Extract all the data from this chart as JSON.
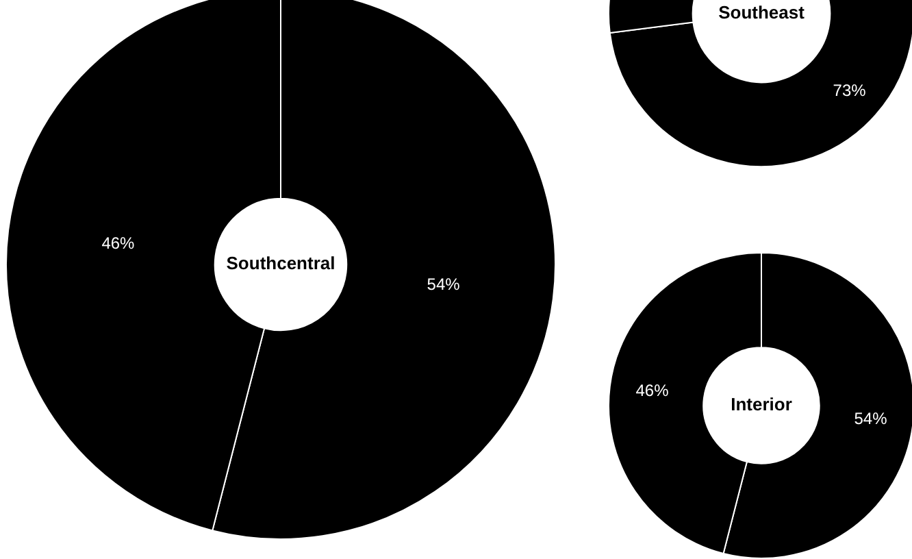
{
  "chart_data": [
    {
      "type": "donut",
      "title": "Southcentral",
      "categories": [
        null,
        null
      ],
      "values": [
        54,
        46
      ],
      "colors": [
        "#000000",
        "#000000"
      ],
      "value_labels": [
        "54%",
        "46%"
      ],
      "legend": false
    },
    {
      "type": "donut",
      "title": "Southeast",
      "categories": [
        null,
        null
      ],
      "values": [
        73,
        27
      ],
      "colors": [
        "#000000",
        "#000000"
      ],
      "value_labels": [
        "73%",
        null
      ],
      "legend": false
    },
    {
      "type": "donut",
      "title": "Interior",
      "categories": [
        null,
        null
      ],
      "values": [
        54,
        46
      ],
      "colors": [
        "#000000",
        "#000000"
      ],
      "value_labels": [
        "54%",
        "46%"
      ],
      "legend": false
    }
  ]
}
